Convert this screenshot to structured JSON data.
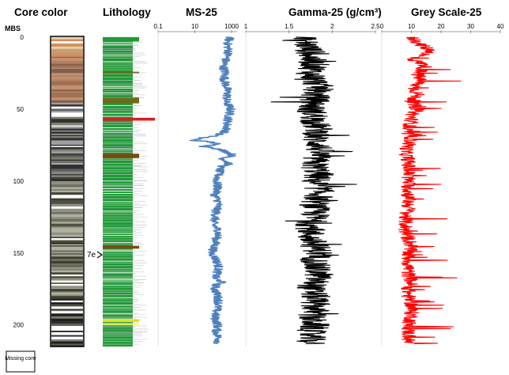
{
  "chart_data": {
    "type": "line",
    "depth_axis": {
      "label": "MBS",
      "ticks": [
        0,
        50,
        100,
        150,
        200
      ],
      "range": [
        0,
        215
      ],
      "inverted": true
    },
    "panels": [
      {
        "id": "core-color",
        "title": "Core color",
        "kind": "image-strip"
      },
      {
        "id": "lithology",
        "title": "Lithology",
        "kind": "lithology-strip",
        "dominant_color": "#1e9a36",
        "layers": [
          {
            "top": 0,
            "base": 3,
            "color": "#1e9a36"
          },
          {
            "top": 24,
            "base": 25,
            "color": "#6b6b1a"
          },
          {
            "top": 42,
            "base": 46,
            "color": "#6b6b1a"
          },
          {
            "top": 56,
            "base": 58,
            "color": "#d42020"
          },
          {
            "top": 81,
            "base": 84,
            "color": "#7a4a10"
          },
          {
            "top": 145,
            "base": 147,
            "color": "#7a4a10"
          },
          {
            "top": 196,
            "base": 198,
            "color": "#e0e020"
          },
          {
            "top": 199,
            "base": 200,
            "color": "#ffff66"
          }
        ]
      },
      {
        "id": "ms-25",
        "title": "MS-25",
        "xscale": "log",
        "xlim": [
          0.1,
          2000
        ],
        "xticks": [
          0.1,
          10,
          1000
        ],
        "xticklabels": [
          "0.1",
          "10",
          "1000"
        ],
        "color": "#4f81bd",
        "depth": [
          0,
          5,
          10,
          15,
          20,
          25,
          30,
          35,
          40,
          45,
          50,
          55,
          60,
          65,
          68,
          70,
          72,
          74,
          76,
          78,
          80,
          82,
          84,
          86,
          88,
          90,
          95,
          100,
          105,
          110,
          115,
          120,
          125,
          130,
          135,
          140,
          145,
          150,
          155,
          160,
          165,
          168,
          170,
          172,
          175,
          180,
          185,
          190,
          195,
          200,
          205,
          210,
          213
        ],
        "values": [
          800,
          600,
          700,
          500,
          350,
          450,
          400,
          550,
          600,
          500,
          900,
          700,
          600,
          500,
          150,
          20,
          8,
          150,
          30,
          200,
          600,
          1200,
          300,
          500,
          700,
          250,
          200,
          150,
          180,
          120,
          200,
          150,
          130,
          100,
          200,
          150,
          120,
          80,
          150,
          200,
          150,
          120,
          300,
          150,
          120,
          180,
          200,
          150,
          120,
          180,
          150,
          200,
          180
        ]
      },
      {
        "id": "gamma-25",
        "title": "Gamma-25 (g/cm³)",
        "xlim": [
          1,
          2.5
        ],
        "xticks": [
          1,
          1.5,
          2,
          2.5
        ],
        "xticklabels": [
          "1",
          "1.5",
          "2",
          "2.5"
        ],
        "color": "#000000",
        "depth": [
          0,
          5,
          10,
          15,
          20,
          25,
          30,
          35,
          40,
          45,
          50,
          55,
          60,
          65,
          70,
          75,
          80,
          85,
          90,
          95,
          100,
          105,
          110,
          115,
          120,
          125,
          130,
          135,
          140,
          145,
          150,
          155,
          160,
          165,
          170,
          175,
          180,
          185,
          190,
          195,
          200,
          205,
          210,
          213
        ],
        "values": [
          1.65,
          1.7,
          1.75,
          1.75,
          1.8,
          1.75,
          1.8,
          1.85,
          1.8,
          1.8,
          1.75,
          1.8,
          1.8,
          1.85,
          1.8,
          1.85,
          1.85,
          1.8,
          1.8,
          1.85,
          1.8,
          1.85,
          1.85,
          1.8,
          1.8,
          1.8,
          1.75,
          1.75,
          1.75,
          1.8,
          1.85,
          1.8,
          1.8,
          1.85,
          1.8,
          1.75,
          1.8,
          1.8,
          1.8,
          1.75,
          1.8,
          1.75,
          1.75,
          1.75
        ]
      },
      {
        "id": "grey-25",
        "title": "Grey Scale-25",
        "xlim": [
          0,
          40
        ],
        "xticks": [
          0,
          10,
          20,
          30,
          40
        ],
        "xticklabels": [
          "0",
          "10",
          "20",
          "30",
          "40"
        ],
        "color": "#ff0000",
        "depth": [
          0,
          5,
          10,
          15,
          20,
          25,
          30,
          35,
          40,
          45,
          50,
          55,
          60,
          65,
          70,
          75,
          80,
          85,
          90,
          95,
          100,
          105,
          110,
          115,
          120,
          125,
          130,
          135,
          140,
          145,
          150,
          155,
          160,
          165,
          170,
          175,
          180,
          185,
          190,
          195,
          200,
          205,
          210,
          213
        ],
        "values": [
          10,
          13,
          17,
          10,
          15,
          12,
          13,
          11,
          12,
          10,
          12,
          10,
          10,
          8,
          10,
          9,
          8,
          9,
          9,
          9,
          9,
          9,
          9,
          9,
          9,
          8,
          8,
          8,
          9,
          10,
          9,
          9,
          9,
          9,
          10,
          9,
          9,
          10,
          10,
          10,
          9,
          9,
          9,
          9
        ]
      }
    ],
    "annotations": [
      {
        "text": "7e",
        "depth": 150,
        "panel": "lithology"
      },
      {
        "text": "Missing core",
        "kind": "legend"
      }
    ]
  }
}
